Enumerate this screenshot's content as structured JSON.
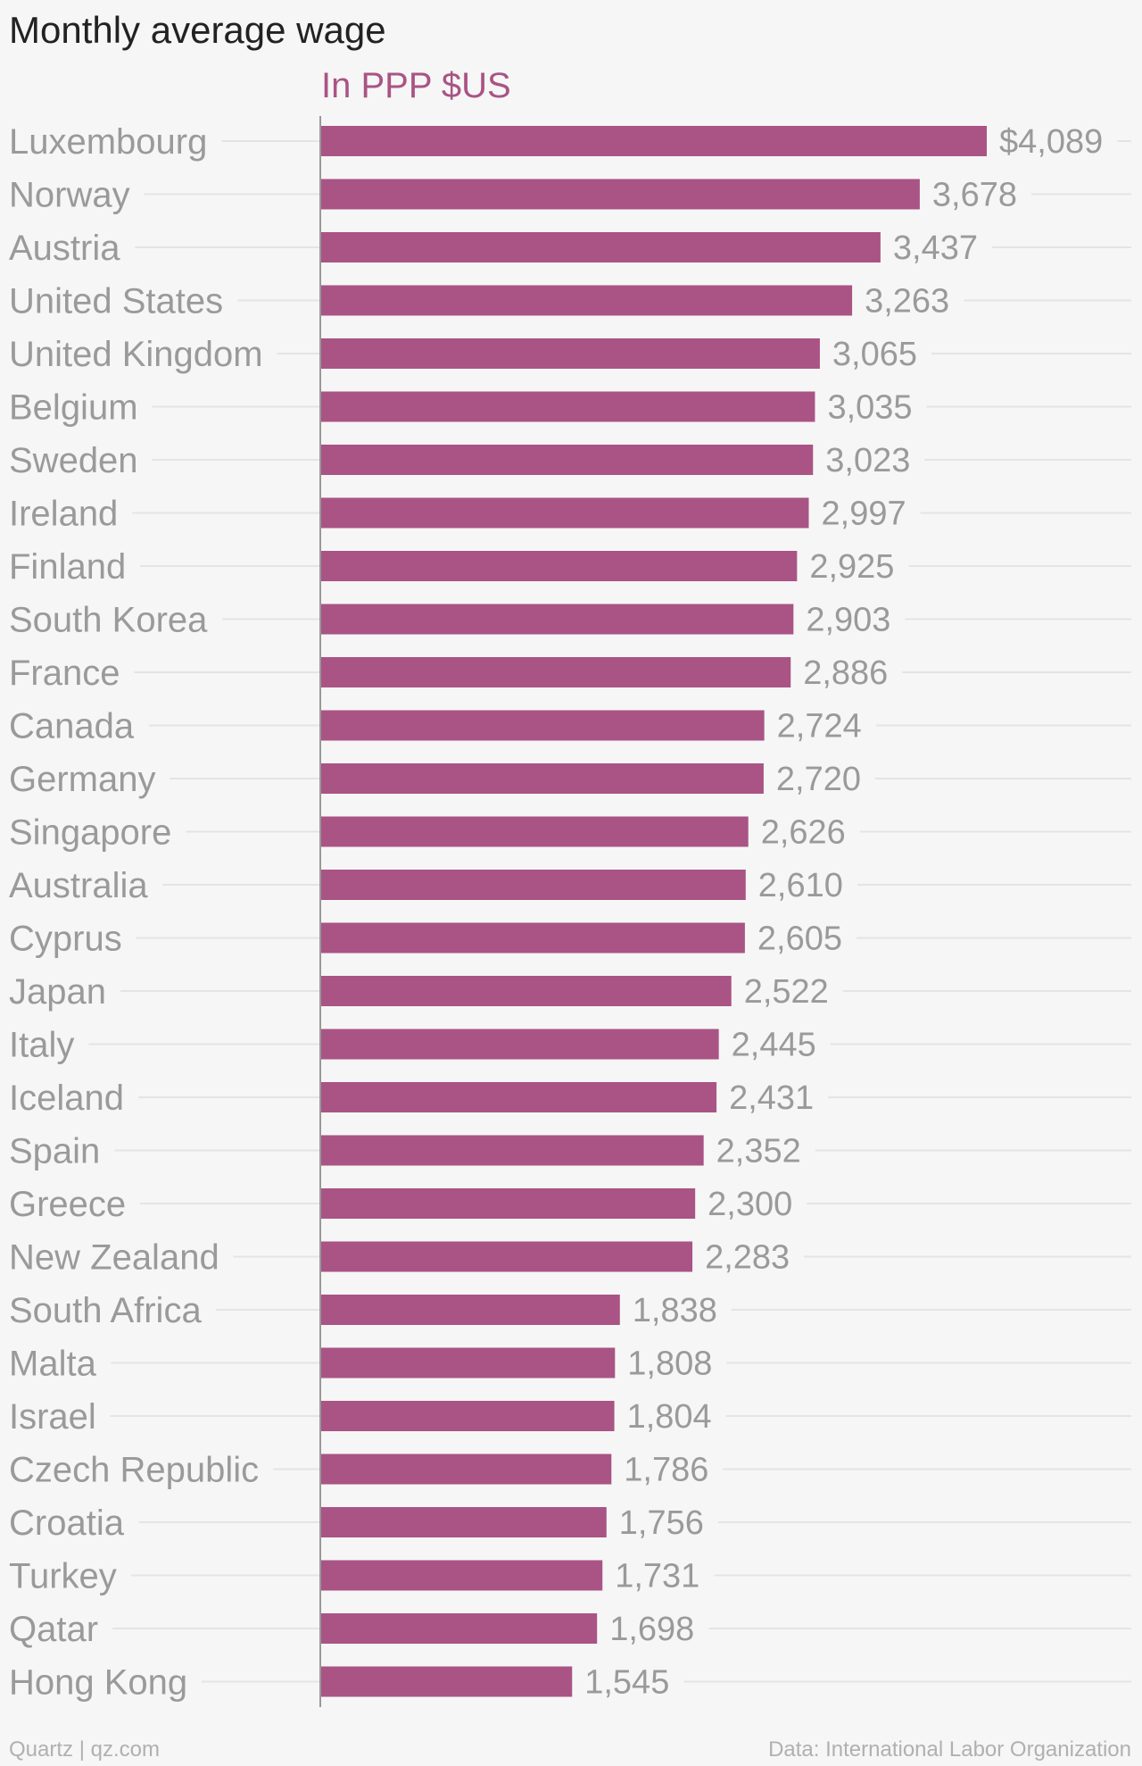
{
  "header": {
    "title": "Monthly average wage",
    "subtitle": "In PPP $US"
  },
  "footer": {
    "source_left": "Quartz | qz.com",
    "source_right": "Data: International Labor Organization"
  },
  "colors": {
    "bar": "#a95484",
    "subtitle": "#a95484",
    "background": "#f6f6f6",
    "gridline": "#e4e4e4",
    "axis": "#999999",
    "text_muted": "#9a9a9a"
  },
  "chart_data": {
    "type": "bar",
    "orientation": "horizontal",
    "title": "Monthly average wage",
    "subtitle": "In PPP $US",
    "categories": [
      "Luxembourg",
      "Norway",
      "Austria",
      "United States",
      "United Kingdom",
      "Belgium",
      "Sweden",
      "Ireland",
      "Finland",
      "South Korea",
      "France",
      "Canada",
      "Germany",
      "Singapore",
      "Australia",
      "Cyprus",
      "Japan",
      "Italy",
      "Iceland",
      "Spain",
      "Greece",
      "New Zealand",
      "South Africa",
      "Malta",
      "Israel",
      "Czech Republic",
      "Croatia",
      "Turkey",
      "Qatar",
      "Hong Kong"
    ],
    "values": [
      4089,
      3678,
      3437,
      3263,
      3065,
      3035,
      3023,
      2997,
      2925,
      2903,
      2886,
      2724,
      2720,
      2626,
      2610,
      2605,
      2522,
      2445,
      2431,
      2352,
      2300,
      2283,
      1838,
      1808,
      1804,
      1786,
      1756,
      1731,
      1698,
      1545
    ],
    "value_labels": [
      "$4,089",
      "3,678",
      "3,437",
      "3,263",
      "3,065",
      "3,035",
      "3,023",
      "2,997",
      "2,925",
      "2,903",
      "2,886",
      "2,724",
      "2,720",
      "2,626",
      "2,610",
      "2,605",
      "2,522",
      "2,445",
      "2,431",
      "2,352",
      "2,300",
      "2,283",
      "1,838",
      "1,808",
      "1,804",
      "1,786",
      "1,756",
      "1,731",
      "1,698",
      "1,545"
    ],
    "xlim": [
      0,
      4089
    ],
    "grid": true,
    "legend": "none"
  }
}
